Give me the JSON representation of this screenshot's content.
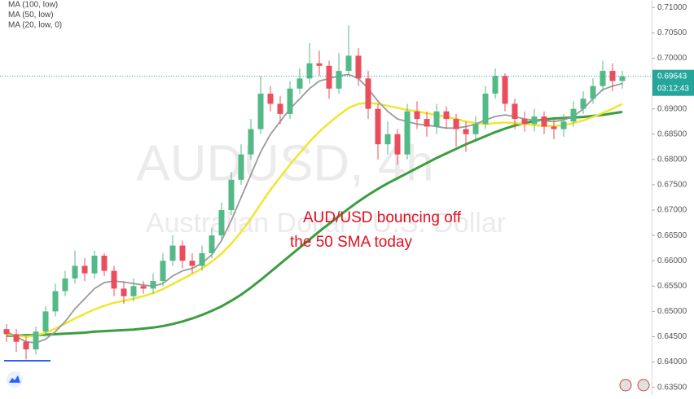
{
  "chart_data": {
    "type": "candlestick",
    "watermark": "AUDUSD, 4h",
    "watermark_subtitle": "Australian Dollar / U.S. Dollar",
    "annotation": [
      "AUD/USD bouncing off",
      "the 50 SMA today"
    ],
    "up_color": "#53b987",
    "down_color": "#eb4d5c",
    "ylim": [
      0.6335,
      0.7115
    ],
    "yticks": [
      {
        "value": 0.71,
        "label": "0.71000"
      },
      {
        "value": 0.705,
        "label": "0.70500"
      },
      {
        "value": 0.7,
        "label": "0.70000"
      },
      {
        "value": 0.69,
        "label": "0.69000"
      },
      {
        "value": 0.685,
        "label": "0.68500"
      },
      {
        "value": 0.68,
        "label": "0.68000"
      },
      {
        "value": 0.675,
        "label": "0.67500"
      },
      {
        "value": 0.67,
        "label": "0.67000"
      },
      {
        "value": 0.665,
        "label": "0.66500"
      },
      {
        "value": 0.66,
        "label": "0.66000"
      },
      {
        "value": 0.655,
        "label": "0.65500"
      },
      {
        "value": 0.65,
        "label": "0.65000"
      },
      {
        "value": 0.645,
        "label": "0.64500"
      },
      {
        "value": 0.64,
        "label": "0.64000"
      },
      {
        "value": 0.635,
        "label": "0.63500"
      }
    ],
    "last_price": 0.69643,
    "last_price_color": "#26a69a",
    "countdown": "03:12:43",
    "candles": {
      "open": [
        0.6465,
        0.6455,
        0.644,
        0.6425,
        0.646,
        0.65,
        0.654,
        0.6565,
        0.659,
        0.6575,
        0.661,
        0.658,
        0.6545,
        0.653,
        0.655,
        0.6545,
        0.656,
        0.66,
        0.663,
        0.66,
        0.659,
        0.6615,
        0.665,
        0.67,
        0.676,
        0.681,
        0.686,
        0.693,
        0.691,
        0.689,
        0.694,
        0.696,
        0.699,
        0.6985,
        0.694,
        0.6975,
        0.7005,
        0.696,
        0.69,
        0.683,
        0.685,
        0.681,
        0.6895,
        0.688,
        0.6865,
        0.6895,
        0.688,
        0.686,
        0.685,
        0.687,
        0.693,
        0.6965,
        0.691,
        0.688,
        0.687,
        0.6885,
        0.6865,
        0.686,
        0.6875,
        0.69,
        0.692,
        0.6945,
        0.6975,
        0.6955
      ],
      "high": [
        0.6475,
        0.6465,
        0.645,
        0.647,
        0.651,
        0.6555,
        0.658,
        0.662,
        0.6605,
        0.662,
        0.6615,
        0.659,
        0.656,
        0.6565,
        0.656,
        0.6575,
        0.6615,
        0.665,
        0.664,
        0.6615,
        0.663,
        0.6665,
        0.6715,
        0.6775,
        0.683,
        0.688,
        0.6965,
        0.6945,
        0.6925,
        0.6955,
        0.698,
        0.703,
        0.7015,
        0.6995,
        0.701,
        0.7065,
        0.702,
        0.6975,
        0.691,
        0.6875,
        0.686,
        0.691,
        0.6915,
        0.6895,
        0.691,
        0.6905,
        0.689,
        0.6875,
        0.6885,
        0.6945,
        0.698,
        0.697,
        0.692,
        0.6895,
        0.69,
        0.6895,
        0.688,
        0.689,
        0.6915,
        0.6935,
        0.696,
        0.6995,
        0.699,
        0.6975
      ],
      "low": [
        0.644,
        0.642,
        0.6405,
        0.6415,
        0.645,
        0.649,
        0.653,
        0.6555,
        0.656,
        0.6565,
        0.657,
        0.653,
        0.6515,
        0.652,
        0.6535,
        0.6535,
        0.655,
        0.659,
        0.6585,
        0.6575,
        0.658,
        0.6605,
        0.664,
        0.669,
        0.675,
        0.68,
        0.685,
        0.6895,
        0.687,
        0.688,
        0.693,
        0.695,
        0.6965,
        0.692,
        0.693,
        0.6965,
        0.6945,
        0.688,
        0.68,
        0.681,
        0.679,
        0.68,
        0.686,
        0.6845,
        0.685,
        0.686,
        0.6825,
        0.6815,
        0.684,
        0.686,
        0.692,
        0.6895,
        0.686,
        0.6855,
        0.6855,
        0.685,
        0.684,
        0.6845,
        0.6865,
        0.689,
        0.691,
        0.6935,
        0.6935,
        0.694
      ],
      "close": [
        0.6455,
        0.644,
        0.6425,
        0.646,
        0.65,
        0.654,
        0.6565,
        0.659,
        0.6575,
        0.661,
        0.658,
        0.6545,
        0.653,
        0.655,
        0.6545,
        0.656,
        0.66,
        0.663,
        0.66,
        0.659,
        0.6615,
        0.665,
        0.67,
        0.676,
        0.681,
        0.686,
        0.693,
        0.691,
        0.689,
        0.694,
        0.696,
        0.699,
        0.6985,
        0.694,
        0.6975,
        0.7005,
        0.696,
        0.69,
        0.683,
        0.685,
        0.681,
        0.6895,
        0.688,
        0.6865,
        0.6895,
        0.688,
        0.686,
        0.685,
        0.687,
        0.693,
        0.6965,
        0.691,
        0.688,
        0.687,
        0.6885,
        0.6865,
        0.686,
        0.6875,
        0.69,
        0.692,
        0.6945,
        0.6975,
        0.6955,
        0.6964
      ]
    },
    "series": [
      {
        "name": "MA (100, low)",
        "color": "#3a9e3f",
        "width": 3,
        "values": [
          0.6452,
          0.6452,
          0.6453,
          0.6453,
          0.6454,
          0.6455,
          0.6456,
          0.6457,
          0.6458,
          0.646,
          0.6461,
          0.6462,
          0.6463,
          0.6464,
          0.6466,
          0.6468,
          0.6471,
          0.6475,
          0.648,
          0.6486,
          0.6493,
          0.6501,
          0.651,
          0.6521,
          0.6533,
          0.6547,
          0.6562,
          0.6578,
          0.6594,
          0.661,
          0.6626,
          0.6642,
          0.6658,
          0.6673,
          0.6688,
          0.6703,
          0.6717,
          0.673,
          0.6742,
          0.6753,
          0.6763,
          0.6773,
          0.6783,
          0.6793,
          0.6803,
          0.6812,
          0.6821,
          0.683,
          0.6838,
          0.6846,
          0.6854,
          0.6861,
          0.6867,
          0.6872,
          0.6876,
          0.6879,
          0.6881,
          0.6882,
          0.6883,
          0.6884,
          0.6886,
          0.6888,
          0.6891,
          0.6894
        ]
      },
      {
        "name": "MA (50, low)",
        "color": "#f2e530",
        "width": 2.5,
        "values": [
          0.6455,
          0.6452,
          0.645,
          0.6452,
          0.6458,
          0.6466,
          0.6476,
          0.6486,
          0.6495,
          0.6504,
          0.6511,
          0.6517,
          0.6521,
          0.6525,
          0.653,
          0.6536,
          0.6544,
          0.6554,
          0.6564,
          0.6574,
          0.6585,
          0.6598,
          0.6614,
          0.6634,
          0.6657,
          0.6683,
          0.6712,
          0.674,
          0.6765,
          0.679,
          0.6813,
          0.6835,
          0.6855,
          0.6872,
          0.6888,
          0.6902,
          0.691,
          0.6912,
          0.691,
          0.6906,
          0.6902,
          0.6898,
          0.6895,
          0.6891,
          0.6888,
          0.6884,
          0.688,
          0.6875,
          0.6872,
          0.687,
          0.6872,
          0.6873,
          0.6872,
          0.687,
          0.6868,
          0.6866,
          0.6866,
          0.6868,
          0.6872,
          0.6877,
          0.6884,
          0.6892,
          0.69,
          0.691
        ]
      },
      {
        "name": "MA (20, low, 0)",
        "color": "#9a9a9a",
        "width": 1.8,
        "values": [
          0.646,
          0.645,
          0.644,
          0.6438,
          0.6445,
          0.646,
          0.648,
          0.6505,
          0.6525,
          0.6545,
          0.6557,
          0.656,
          0.6558,
          0.6555,
          0.6552,
          0.655,
          0.6555,
          0.657,
          0.658,
          0.6585,
          0.6595,
          0.6612,
          0.664,
          0.668,
          0.6725,
          0.677,
          0.6815,
          0.685,
          0.6875,
          0.69,
          0.692,
          0.694,
          0.6955,
          0.696,
          0.6965,
          0.6968,
          0.696,
          0.694,
          0.6915,
          0.6895,
          0.688,
          0.6875,
          0.687,
          0.6868,
          0.6865,
          0.6862,
          0.6862,
          0.6865,
          0.687,
          0.6878,
          0.6885,
          0.6888,
          0.6885,
          0.688,
          0.6878,
          0.6876,
          0.6875,
          0.6878,
          0.6885,
          0.69,
          0.692,
          0.6938,
          0.6945,
          0.695
        ]
      }
    ]
  }
}
